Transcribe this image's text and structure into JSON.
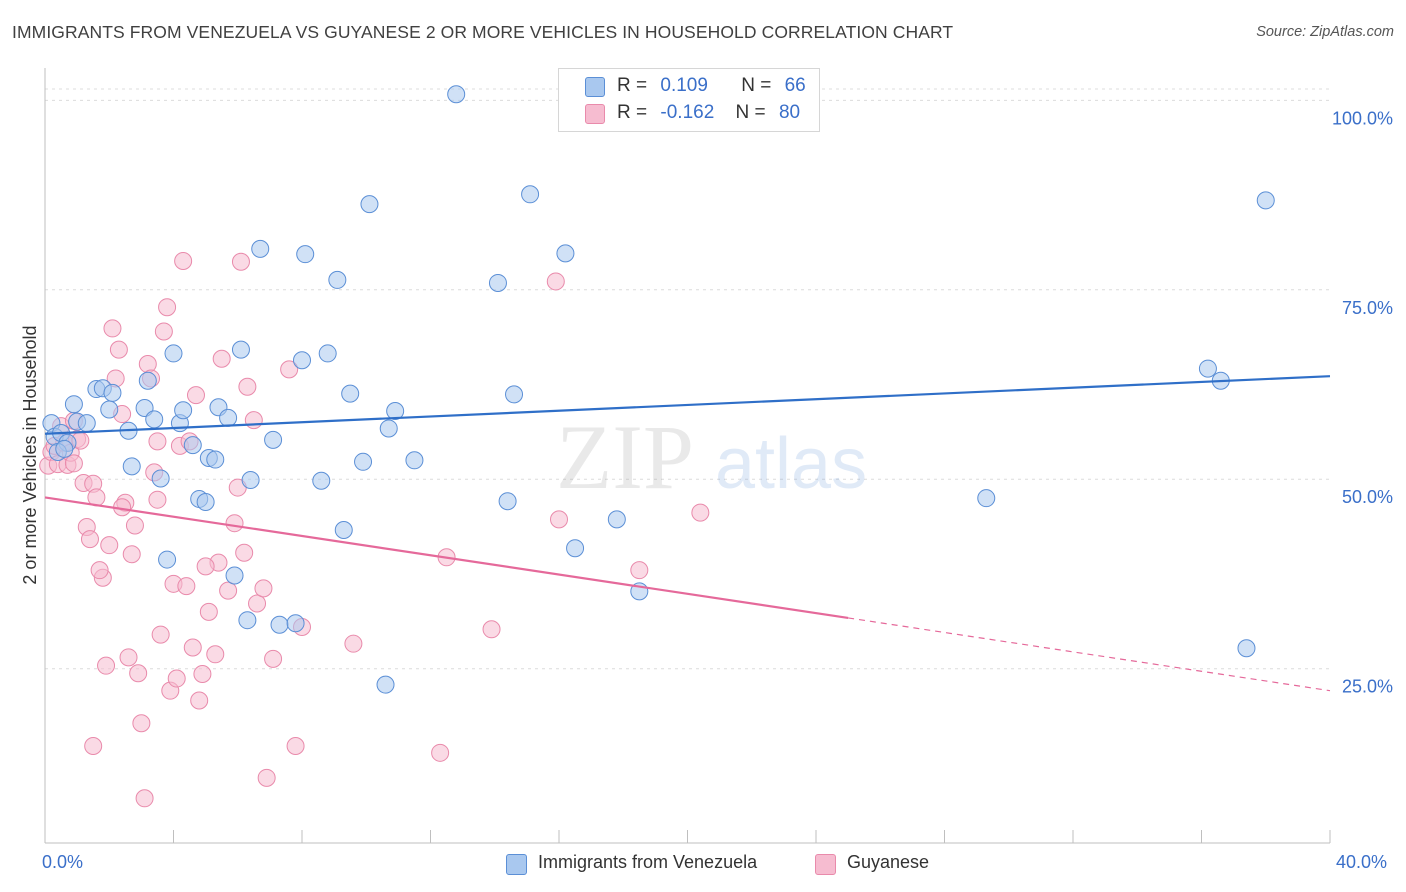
{
  "title": "IMMIGRANTS FROM VENEZUELA VS GUYANESE 2 OR MORE VEHICLES IN HOUSEHOLD CORRELATION CHART",
  "source": "Source: ZipAtlas.com",
  "watermark": {
    "zip": "ZIP",
    "atlas": "atlas"
  },
  "colors": {
    "blue_fill": "#a9c8ef",
    "blue_stroke": "#5b8fd6",
    "blue_line": "#2f6fc8",
    "pink_fill": "#f6bcd0",
    "pink_stroke": "#e98aab",
    "pink_line": "#e5699a",
    "axis_text": "#3a6fc9",
    "grid": "#dcdcdc"
  },
  "legend_top": {
    "rows": [
      {
        "r_label": "R =",
        "r_value": "0.109",
        "n_label": "N =",
        "n_value": "66",
        "color": "#a9c8ef"
      },
      {
        "r_label": "R =",
        "r_value": "-0.162",
        "n_label": "N =",
        "n_value": "80",
        "color": "#f6bcd0"
      }
    ]
  },
  "legend_bottom": [
    {
      "label": "Immigrants from Venezuela",
      "color": "#a9c8ef"
    },
    {
      "label": "Guyanese",
      "color": "#f6bcd0"
    }
  ],
  "x_axis": {
    "min_label": "0.0%",
    "max_label": "40.0%"
  },
  "chart_data": {
    "type": "scatter",
    "title": "IMMIGRANTS FROM VENEZUELA VS GUYANESE 2 OR MORE VEHICLES IN HOUSEHOLD CORRELATION CHART",
    "xlabel": "",
    "ylabel": "2 or more Vehicles in Household",
    "xlim": [
      0,
      40
    ],
    "ylim": [
      2,
      104
    ],
    "y_ticks": [
      25,
      50,
      75,
      100
    ],
    "y_tick_labels": [
      "25.0%",
      "50.0%",
      "75.0%",
      "100.0%"
    ],
    "x_tick_labels": [
      "0.0%",
      "40.0%"
    ],
    "grid": true,
    "series": [
      {
        "name": "Immigrants from Venezuela",
        "color": "#a9c8ef",
        "points": [
          [
            0.2,
            57.4
          ],
          [
            0.3,
            55.6
          ],
          [
            0.5,
            56.1
          ],
          [
            0.7,
            54.8
          ],
          [
            0.9,
            59.9
          ],
          [
            1.0,
            57.6
          ],
          [
            1.3,
            57.4
          ],
          [
            1.6,
            61.9
          ],
          [
            1.8,
            62.0
          ],
          [
            2.0,
            59.2
          ],
          [
            2.1,
            61.4
          ],
          [
            2.6,
            56.4
          ],
          [
            2.7,
            51.7
          ],
          [
            3.1,
            59.4
          ],
          [
            3.2,
            63.0
          ],
          [
            3.4,
            57.9
          ],
          [
            3.6,
            50.1
          ],
          [
            3.8,
            39.4
          ],
          [
            4.0,
            66.6
          ],
          [
            4.2,
            57.4
          ],
          [
            4.3,
            59.1
          ],
          [
            4.6,
            54.5
          ],
          [
            4.8,
            47.4
          ],
          [
            5.0,
            47.0
          ],
          [
            5.1,
            52.8
          ],
          [
            5.3,
            52.6
          ],
          [
            5.4,
            59.5
          ],
          [
            5.7,
            58.1
          ],
          [
            5.9,
            37.3
          ],
          [
            6.1,
            67.1
          ],
          [
            6.3,
            31.4
          ],
          [
            6.4,
            49.9
          ],
          [
            6.7,
            80.4
          ],
          [
            7.1,
            55.2
          ],
          [
            7.3,
            30.8
          ],
          [
            7.8,
            31.0
          ],
          [
            8.0,
            65.7
          ],
          [
            8.1,
            79.7
          ],
          [
            8.6,
            49.8
          ],
          [
            8.8,
            66.6
          ],
          [
            9.1,
            76.3
          ],
          [
            9.3,
            43.3
          ],
          [
            9.5,
            61.3
          ],
          [
            9.9,
            52.3
          ],
          [
            10.1,
            86.3
          ],
          [
            10.6,
            22.9
          ],
          [
            10.7,
            56.7
          ],
          [
            10.9,
            59.0
          ],
          [
            11.5,
            52.5
          ],
          [
            12.8,
            100.8
          ],
          [
            14.1,
            75.9
          ],
          [
            14.4,
            47.1
          ],
          [
            14.6,
            61.2
          ],
          [
            15.1,
            87.6
          ],
          [
            16.2,
            79.8
          ],
          [
            16.5,
            40.9
          ],
          [
            17.8,
            44.7
          ],
          [
            18.5,
            35.2
          ],
          [
            18.9,
            100.8
          ],
          [
            29.3,
            47.5
          ],
          [
            36.2,
            64.6
          ],
          [
            36.6,
            63.0
          ],
          [
            37.4,
            27.7
          ],
          [
            38.0,
            86.8
          ],
          [
            0.4,
            53.6
          ],
          [
            0.6,
            54.0
          ]
        ]
      },
      {
        "name": "Guyanese",
        "color": "#f6bcd0",
        "points": [
          [
            0.1,
            51.8
          ],
          [
            0.2,
            53.6
          ],
          [
            0.3,
            54.4
          ],
          [
            0.4,
            52.0
          ],
          [
            0.5,
            57.0
          ],
          [
            0.6,
            54.8
          ],
          [
            0.7,
            51.9
          ],
          [
            0.8,
            53.5
          ],
          [
            0.9,
            52.1
          ],
          [
            1.0,
            55.3
          ],
          [
            1.1,
            55.1
          ],
          [
            1.2,
            49.5
          ],
          [
            1.3,
            43.7
          ],
          [
            1.4,
            42.1
          ],
          [
            1.5,
            49.4
          ],
          [
            1.6,
            47.6
          ],
          [
            1.8,
            37.0
          ],
          [
            1.9,
            25.4
          ],
          [
            2.0,
            41.3
          ],
          [
            2.1,
            69.9
          ],
          [
            2.2,
            63.3
          ],
          [
            2.3,
            67.1
          ],
          [
            2.4,
            58.6
          ],
          [
            2.5,
            46.9
          ],
          [
            2.6,
            26.5
          ],
          [
            2.7,
            40.1
          ],
          [
            2.8,
            43.9
          ],
          [
            2.9,
            24.4
          ],
          [
            3.0,
            17.8
          ],
          [
            3.1,
            7.9
          ],
          [
            3.2,
            65.2
          ],
          [
            3.4,
            50.9
          ],
          [
            3.5,
            47.3
          ],
          [
            3.6,
            29.5
          ],
          [
            3.7,
            69.5
          ],
          [
            3.8,
            72.7
          ],
          [
            3.9,
            22.1
          ],
          [
            4.0,
            36.2
          ],
          [
            4.1,
            23.7
          ],
          [
            4.2,
            54.4
          ],
          [
            4.3,
            78.8
          ],
          [
            4.4,
            35.9
          ],
          [
            4.5,
            55.0
          ],
          [
            4.6,
            27.8
          ],
          [
            4.7,
            61.1
          ],
          [
            4.8,
            20.8
          ],
          [
            4.9,
            24.3
          ],
          [
            5.1,
            32.5
          ],
          [
            5.3,
            26.9
          ],
          [
            5.4,
            39.0
          ],
          [
            5.5,
            65.9
          ],
          [
            5.7,
            35.3
          ],
          [
            5.9,
            44.2
          ],
          [
            6.0,
            48.9
          ],
          [
            6.1,
            78.7
          ],
          [
            6.2,
            40.3
          ],
          [
            6.5,
            57.8
          ],
          [
            6.6,
            33.6
          ],
          [
            6.8,
            35.6
          ],
          [
            6.9,
            10.6
          ],
          [
            7.1,
            26.3
          ],
          [
            7.6,
            64.5
          ],
          [
            7.8,
            14.8
          ],
          [
            8.0,
            30.5
          ],
          [
            9.6,
            28.3
          ],
          [
            12.3,
            13.9
          ],
          [
            12.5,
            39.7
          ],
          [
            13.9,
            30.2
          ],
          [
            15.9,
            76.1
          ],
          [
            16.0,
            44.7
          ],
          [
            18.5,
            38.0
          ],
          [
            20.4,
            45.6
          ],
          [
            1.5,
            14.8
          ],
          [
            3.3,
            63.3
          ],
          [
            1.7,
            38.0
          ],
          [
            0.9,
            57.7
          ],
          [
            2.4,
            46.3
          ],
          [
            5.0,
            38.5
          ],
          [
            6.3,
            62.2
          ],
          [
            3.5,
            55.0
          ]
        ]
      }
    ],
    "trendlines": [
      {
        "series": "Immigrants from Venezuela",
        "x": [
          0,
          40
        ],
        "y": [
          56.0,
          63.6
        ],
        "style": "solid"
      },
      {
        "series": "Guyanese",
        "x": [
          0,
          25
        ],
        "y": [
          47.6,
          31.7
        ],
        "style": "solid"
      },
      {
        "series": "Guyanese",
        "x": [
          25,
          40
        ],
        "y": [
          31.7,
          22.1
        ],
        "style": "dashed"
      }
    ]
  }
}
